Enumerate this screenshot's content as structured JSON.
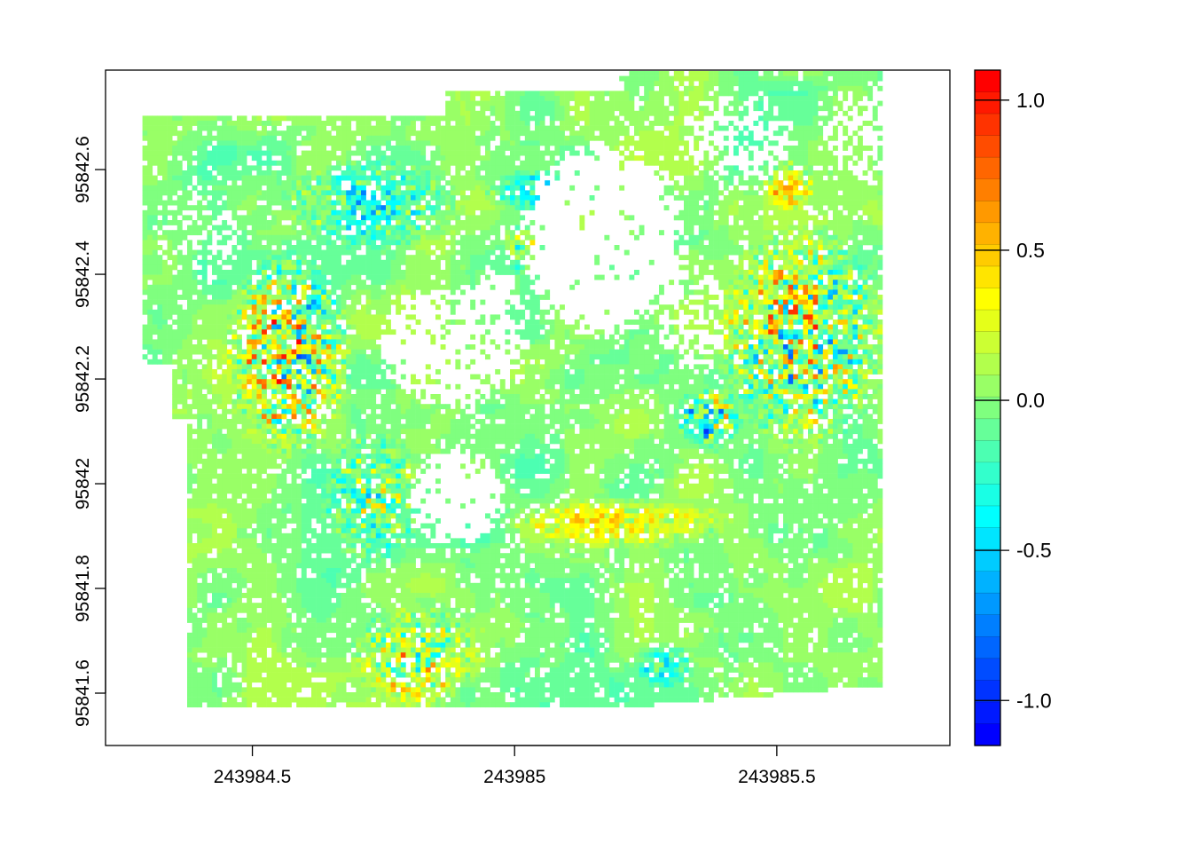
{
  "chart_data": {
    "type": "heatmap",
    "title": "",
    "xlabel": "",
    "ylabel": "",
    "xlim": [
      243984.22,
      243985.83
    ],
    "ylim": [
      95841.5,
      95842.79
    ],
    "x_ticks": [
      {
        "value": 243984.5,
        "label": "243984.5"
      },
      {
        "value": 243985.0,
        "label": "243985"
      },
      {
        "value": 243985.5,
        "label": "243985.5"
      }
    ],
    "y_ticks": [
      {
        "value": 95841.6,
        "label": "95841.6"
      },
      {
        "value": 95841.8,
        "label": "95841.8"
      },
      {
        "value": 95842.0,
        "label": "95842"
      },
      {
        "value": 95842.2,
        "label": "95842.2"
      },
      {
        "value": 95842.4,
        "label": "95842.4"
      },
      {
        "value": 95842.6,
        "label": "95842.6"
      }
    ],
    "colorbar": {
      "range": [
        -1.15,
        1.1
      ],
      "ticks": [
        {
          "value": 1.0,
          "label": "1.0"
        },
        {
          "value": 0.5,
          "label": "0.5"
        },
        {
          "value": 0.0,
          "label": "0.0"
        },
        {
          "value": -0.5,
          "label": "-0.5"
        },
        {
          "value": -1.0,
          "label": "-1.0"
        }
      ],
      "colors": [
        "#ff0000",
        "#ff1900",
        "#ff3300",
        "#ff4c00",
        "#ff6600",
        "#ff7f00",
        "#ff9900",
        "#ffb200",
        "#ffcc00",
        "#ffe500",
        "#ffff00",
        "#e5ff19",
        "#ccff33",
        "#b2ff4c",
        "#99ff66",
        "#7fff7f",
        "#66ff99",
        "#4cffb2",
        "#33ffcc",
        "#19ffe5",
        "#00ffff",
        "#00e5ff",
        "#00ccff",
        "#00b2ff",
        "#0099ff",
        "#007fff",
        "#0066ff",
        "#004cff",
        "#0033ff",
        "#0019ff",
        "#0000ff"
      ]
    },
    "raster": {
      "grid": "approx. 150 x 127 cells",
      "dominant_value": 0.0,
      "value_range": [
        -1.1,
        1.1
      ],
      "nodata_color": "#ffffff",
      "hotspots": [
        {
          "x": 243984.6,
          "y": 95842.1,
          "values": "-1.0 to 1.0"
        },
        {
          "x": 243985.45,
          "y": 95842.2,
          "values": "-1.0 to 1.0"
        },
        {
          "x": 243984.82,
          "y": 95841.65,
          "values": "-0.5 to 0.6"
        },
        {
          "x": 243985.3,
          "y": 95842.45,
          "values": "-0.3 to 0.6"
        },
        {
          "x": 243984.9,
          "y": 95842.55,
          "values": "-0.6 to 0.3"
        }
      ]
    }
  }
}
